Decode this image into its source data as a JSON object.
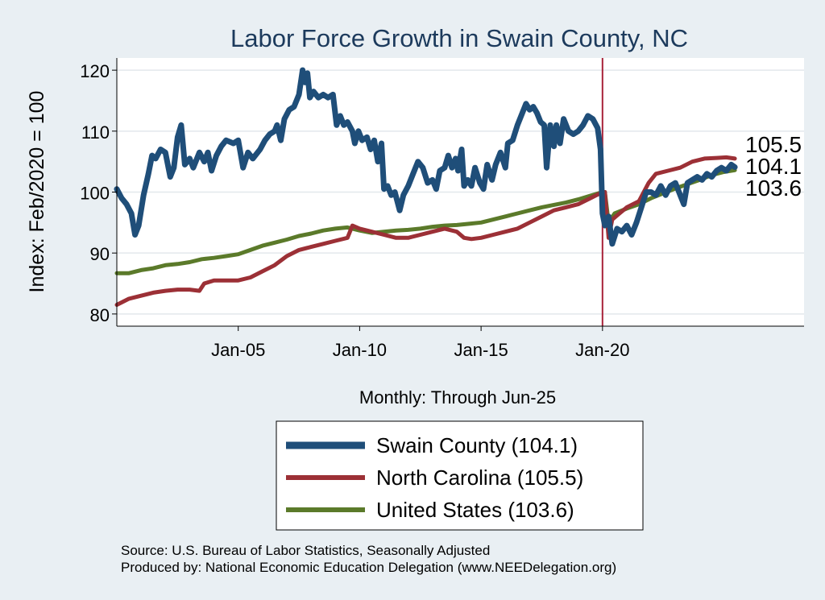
{
  "chart_data": {
    "type": "line",
    "title": "Labor Force Growth in Swain  County, NC",
    "xlabel": "Monthly: Through Jun-25",
    "ylabel": "Index: Feb/2020 = 100",
    "ylim": [
      78,
      122
    ],
    "xlim": [
      2000.0,
      2028.3
    ],
    "yticks": [
      80,
      90,
      100,
      110,
      120
    ],
    "xticks": [
      {
        "value": 2005.0,
        "label": "Jan-05"
      },
      {
        "value": 2010.0,
        "label": "Jan-10"
      },
      {
        "value": 2015.0,
        "label": "Jan-15"
      },
      {
        "value": 2020.0,
        "label": "Jan-20"
      }
    ],
    "reference_line": {
      "x": 2020.0,
      "color": "#a8233a"
    },
    "grid": true,
    "series": [
      {
        "name": "Swain  County",
        "legend": "Swain  County (104.1)",
        "end_label": "104.1",
        "color": "#1f4e79",
        "width": 7,
        "points": [
          [
            2000.0,
            100.5
          ],
          [
            2000.2,
            99.0
          ],
          [
            2000.4,
            98.0
          ],
          [
            2000.6,
            96.5
          ],
          [
            2000.75,
            93.0
          ],
          [
            2000.9,
            94.5
          ],
          [
            2001.1,
            99.5
          ],
          [
            2001.3,
            103.0
          ],
          [
            2001.45,
            106.0
          ],
          [
            2001.6,
            105.5
          ],
          [
            2001.8,
            107.0
          ],
          [
            2002.0,
            106.5
          ],
          [
            2002.2,
            102.5
          ],
          [
            2002.35,
            104.0
          ],
          [
            2002.5,
            109.0
          ],
          [
            2002.65,
            111.0
          ],
          [
            2002.8,
            104.5
          ],
          [
            2003.0,
            105.5
          ],
          [
            2003.15,
            104.0
          ],
          [
            2003.4,
            106.5
          ],
          [
            2003.6,
            105.0
          ],
          [
            2003.75,
            106.5
          ],
          [
            2003.9,
            103.5
          ],
          [
            2004.1,
            106.0
          ],
          [
            2004.3,
            107.5
          ],
          [
            2004.5,
            108.5
          ],
          [
            2004.8,
            108.0
          ],
          [
            2005.0,
            108.5
          ],
          [
            2005.2,
            104.0
          ],
          [
            2005.4,
            106.5
          ],
          [
            2005.6,
            105.5
          ],
          [
            2005.9,
            107.0
          ],
          [
            2006.1,
            108.5
          ],
          [
            2006.3,
            109.5
          ],
          [
            2006.5,
            110.0
          ],
          [
            2006.6,
            111.0
          ],
          [
            2006.75,
            108.5
          ],
          [
            2006.9,
            112.0
          ],
          [
            2007.1,
            113.5
          ],
          [
            2007.3,
            114.0
          ],
          [
            2007.5,
            116.0
          ],
          [
            2007.65,
            120.0
          ],
          [
            2007.75,
            118.0
          ],
          [
            2007.85,
            119.5
          ],
          [
            2007.95,
            115.5
          ],
          [
            2008.1,
            116.5
          ],
          [
            2008.3,
            115.5
          ],
          [
            2008.5,
            116.0
          ],
          [
            2008.7,
            115.5
          ],
          [
            2008.9,
            116.0
          ],
          [
            2009.05,
            111.0
          ],
          [
            2009.2,
            112.5
          ],
          [
            2009.35,
            111.0
          ],
          [
            2009.5,
            111.5
          ],
          [
            2009.7,
            110.0
          ],
          [
            2009.8,
            108.0
          ],
          [
            2009.95,
            110.0
          ],
          [
            2010.1,
            108.5
          ],
          [
            2010.3,
            109.0
          ],
          [
            2010.45,
            107.0
          ],
          [
            2010.6,
            108.5
          ],
          [
            2010.75,
            105.0
          ],
          [
            2010.9,
            108.0
          ],
          [
            2011.0,
            100.5
          ],
          [
            2011.15,
            101.0
          ],
          [
            2011.3,
            99.5
          ],
          [
            2011.45,
            100.0
          ],
          [
            2011.55,
            98.5
          ],
          [
            2011.65,
            97.0
          ],
          [
            2011.8,
            99.5
          ],
          [
            2012.0,
            101.0
          ],
          [
            2012.2,
            103.0
          ],
          [
            2012.4,
            105.0
          ],
          [
            2012.6,
            104.0
          ],
          [
            2012.8,
            101.5
          ],
          [
            2013.0,
            102.0
          ],
          [
            2013.15,
            100.5
          ],
          [
            2013.3,
            103.5
          ],
          [
            2013.5,
            104.0
          ],
          [
            2013.65,
            106.0
          ],
          [
            2013.8,
            104.0
          ],
          [
            2013.95,
            105.5
          ],
          [
            2014.05,
            103.5
          ],
          [
            2014.2,
            107.0
          ],
          [
            2014.3,
            101.0
          ],
          [
            2014.45,
            102.0
          ],
          [
            2014.6,
            101.0
          ],
          [
            2014.75,
            104.0
          ],
          [
            2014.95,
            101.5
          ],
          [
            2015.1,
            100.5
          ],
          [
            2015.25,
            104.5
          ],
          [
            2015.45,
            102.0
          ],
          [
            2015.6,
            104.5
          ],
          [
            2015.8,
            106.5
          ],
          [
            2016.0,
            104.0
          ],
          [
            2016.1,
            108.0
          ],
          [
            2016.3,
            108.5
          ],
          [
            2016.5,
            111.0
          ],
          [
            2016.7,
            113.0
          ],
          [
            2016.85,
            114.5
          ],
          [
            2017.0,
            113.5
          ],
          [
            2017.15,
            114.0
          ],
          [
            2017.3,
            113.0
          ],
          [
            2017.45,
            111.5
          ],
          [
            2017.6,
            111.0
          ],
          [
            2017.7,
            104.0
          ],
          [
            2017.85,
            111.0
          ],
          [
            2018.0,
            107.5
          ],
          [
            2018.1,
            111.0
          ],
          [
            2018.25,
            108.0
          ],
          [
            2018.4,
            112.0
          ],
          [
            2018.6,
            110.0
          ],
          [
            2018.8,
            109.5
          ],
          [
            2019.0,
            110.0
          ],
          [
            2019.2,
            111.0
          ],
          [
            2019.4,
            112.5
          ],
          [
            2019.6,
            112.0
          ],
          [
            2019.8,
            110.5
          ],
          [
            2019.92,
            107.0
          ],
          [
            2020.0,
            96.5
          ],
          [
            2020.1,
            94.5
          ],
          [
            2020.25,
            96.0
          ],
          [
            2020.4,
            91.5
          ],
          [
            2020.6,
            94.0
          ],
          [
            2020.8,
            93.5
          ],
          [
            2021.0,
            94.5
          ],
          [
            2021.2,
            93.0
          ],
          [
            2021.4,
            95.0
          ],
          [
            2021.6,
            97.5
          ],
          [
            2021.8,
            100.0
          ],
          [
            2022.0,
            100.0
          ],
          [
            2022.2,
            99.5
          ],
          [
            2022.4,
            101.0
          ],
          [
            2022.6,
            99.5
          ],
          [
            2022.8,
            101.0
          ],
          [
            2023.0,
            101.5
          ],
          [
            2023.2,
            99.5
          ],
          [
            2023.35,
            98.0
          ],
          [
            2023.5,
            101.5
          ],
          [
            2023.7,
            102.0
          ],
          [
            2023.9,
            102.5
          ],
          [
            2024.1,
            102.0
          ],
          [
            2024.3,
            103.0
          ],
          [
            2024.5,
            102.5
          ],
          [
            2024.7,
            103.5
          ],
          [
            2024.9,
            104.0
          ],
          [
            2025.1,
            103.5
          ],
          [
            2025.3,
            104.5
          ],
          [
            2025.45,
            104.1
          ]
        ]
      },
      {
        "name": "North Carolina",
        "legend": "North Carolina (105.5)",
        "end_label": "105.5",
        "color": "#9c3036",
        "width": 5,
        "points": [
          [
            2000.0,
            81.5
          ],
          [
            2000.5,
            82.5
          ],
          [
            2001.0,
            83.0
          ],
          [
            2001.5,
            83.5
          ],
          [
            2002.0,
            83.8
          ],
          [
            2002.5,
            84.0
          ],
          [
            2003.0,
            84.0
          ],
          [
            2003.4,
            83.8
          ],
          [
            2003.6,
            85.0
          ],
          [
            2004.0,
            85.5
          ],
          [
            2004.5,
            85.5
          ],
          [
            2005.0,
            85.5
          ],
          [
            2005.5,
            86.0
          ],
          [
            2006.0,
            87.0
          ],
          [
            2006.5,
            88.0
          ],
          [
            2007.0,
            89.5
          ],
          [
            2007.5,
            90.5
          ],
          [
            2008.0,
            91.0
          ],
          [
            2008.5,
            91.5
          ],
          [
            2009.0,
            92.0
          ],
          [
            2009.5,
            92.5
          ],
          [
            2009.7,
            94.5
          ],
          [
            2010.0,
            94.0
          ],
          [
            2010.5,
            93.5
          ],
          [
            2011.0,
            93.0
          ],
          [
            2011.5,
            92.5
          ],
          [
            2012.0,
            92.5
          ],
          [
            2012.5,
            93.0
          ],
          [
            2013.0,
            93.5
          ],
          [
            2013.5,
            94.0
          ],
          [
            2014.0,
            93.5
          ],
          [
            2014.3,
            92.5
          ],
          [
            2014.6,
            92.3
          ],
          [
            2015.0,
            92.5
          ],
          [
            2015.5,
            93.0
          ],
          [
            2016.0,
            93.5
          ],
          [
            2016.5,
            94.0
          ],
          [
            2017.0,
            95.0
          ],
          [
            2017.5,
            96.0
          ],
          [
            2018.0,
            97.0
          ],
          [
            2018.5,
            97.5
          ],
          [
            2019.0,
            98.0
          ],
          [
            2019.5,
            99.0
          ],
          [
            2020.0,
            100.0
          ],
          [
            2020.1,
            100.0
          ],
          [
            2020.25,
            92.5
          ],
          [
            2020.4,
            95.5
          ],
          [
            2020.7,
            96.5
          ],
          [
            2021.0,
            97.5
          ],
          [
            2021.5,
            98.5
          ],
          [
            2021.9,
            101.5
          ],
          [
            2022.2,
            103.0
          ],
          [
            2022.7,
            103.5
          ],
          [
            2023.2,
            104.0
          ],
          [
            2023.7,
            105.0
          ],
          [
            2024.2,
            105.5
          ],
          [
            2024.7,
            105.6
          ],
          [
            2025.1,
            105.7
          ],
          [
            2025.45,
            105.5
          ]
        ]
      },
      {
        "name": "United States",
        "legend": "United States (103.6)",
        "end_label": "103.6",
        "color": "#5b7a2a",
        "width": 5,
        "points": [
          [
            2000.0,
            86.7
          ],
          [
            2000.5,
            86.7
          ],
          [
            2001.0,
            87.2
          ],
          [
            2001.5,
            87.5
          ],
          [
            2002.0,
            88.0
          ],
          [
            2002.5,
            88.2
          ],
          [
            2003.0,
            88.5
          ],
          [
            2003.5,
            89.0
          ],
          [
            2004.0,
            89.2
          ],
          [
            2004.5,
            89.5
          ],
          [
            2005.0,
            89.8
          ],
          [
            2005.5,
            90.5
          ],
          [
            2006.0,
            91.2
          ],
          [
            2006.5,
            91.7
          ],
          [
            2007.0,
            92.2
          ],
          [
            2007.5,
            92.8
          ],
          [
            2008.0,
            93.2
          ],
          [
            2008.5,
            93.7
          ],
          [
            2009.0,
            94.0
          ],
          [
            2009.5,
            94.2
          ],
          [
            2010.0,
            93.7
          ],
          [
            2010.5,
            93.3
          ],
          [
            2011.0,
            93.5
          ],
          [
            2011.5,
            93.7
          ],
          [
            2012.0,
            93.8
          ],
          [
            2012.5,
            94.0
          ],
          [
            2013.0,
            94.3
          ],
          [
            2013.5,
            94.5
          ],
          [
            2014.0,
            94.6
          ],
          [
            2014.5,
            94.8
          ],
          [
            2015.0,
            95.0
          ],
          [
            2015.5,
            95.5
          ],
          [
            2016.0,
            96.0
          ],
          [
            2016.5,
            96.5
          ],
          [
            2017.0,
            97.0
          ],
          [
            2017.5,
            97.5
          ],
          [
            2018.0,
            97.9
          ],
          [
            2018.5,
            98.3
          ],
          [
            2019.0,
            98.8
          ],
          [
            2019.5,
            99.4
          ],
          [
            2020.0,
            100.0
          ],
          [
            2020.1,
            100.0
          ],
          [
            2020.25,
            95.0
          ],
          [
            2020.5,
            96.5
          ],
          [
            2021.0,
            97.3
          ],
          [
            2021.5,
            98.0
          ],
          [
            2022.0,
            99.0
          ],
          [
            2022.5,
            99.8
          ],
          [
            2023.0,
            100.6
          ],
          [
            2023.5,
            101.3
          ],
          [
            2024.0,
            102.0
          ],
          [
            2024.5,
            102.8
          ],
          [
            2025.0,
            103.3
          ],
          [
            2025.45,
            103.6
          ]
        ]
      }
    ]
  },
  "source": {
    "line1": "Source: U.S. Bureau of Labor Statistics, Seasonally Adjusted",
    "line2": "Produced by: National Economic Education Delegation (www.NEEDelegation.org)"
  }
}
